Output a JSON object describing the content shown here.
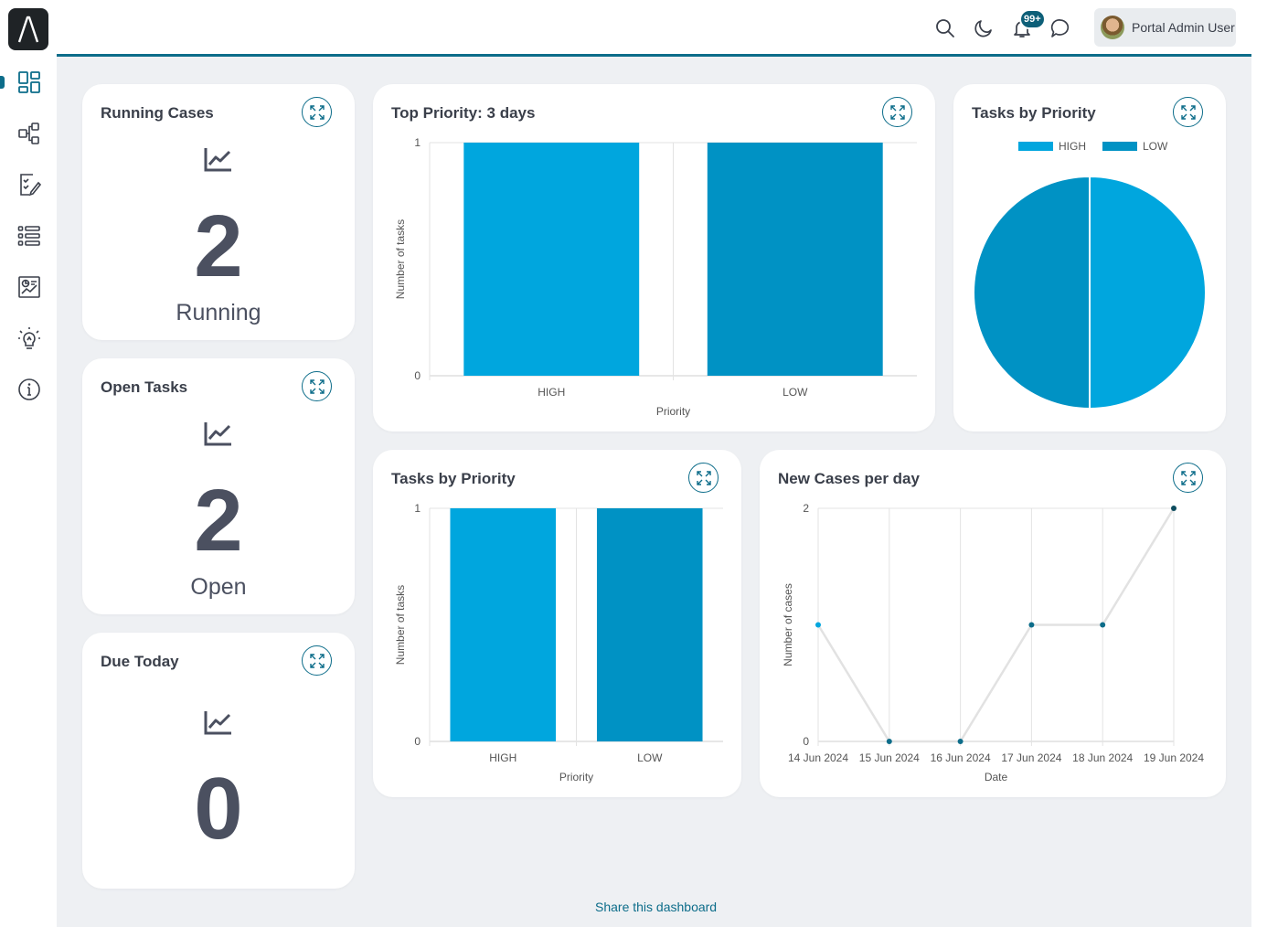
{
  "header": {
    "notifications_badge": "99+",
    "user_name": "Portal Admin User"
  },
  "sidebar": {
    "items": [
      {
        "icon": "dashboard-icon",
        "active": true
      },
      {
        "icon": "process-icon"
      },
      {
        "icon": "task-list-icon"
      },
      {
        "icon": "case-list-icon"
      },
      {
        "icon": "statistics-icon"
      },
      {
        "icon": "idea-icon"
      },
      {
        "icon": "info-icon"
      }
    ]
  },
  "colors": {
    "accent": "#0d6d8a",
    "high": "#00a6de",
    "low": "#0092c4",
    "line_point_dark": "#0d4c5e"
  },
  "widgets": {
    "running_cases": {
      "title": "Running Cases",
      "value": "2",
      "label": "Running"
    },
    "open_tasks": {
      "title": "Open Tasks",
      "value": "2",
      "label": "Open"
    },
    "due_today": {
      "title": "Due Today",
      "value": "0",
      "label": ""
    },
    "top_priority": {
      "title": "Top Priority: 3 days"
    },
    "tasks_by_priority_pie": {
      "title": "Tasks by Priority"
    },
    "tasks_by_priority_bar": {
      "title": "Tasks by Priority"
    },
    "new_cases_per_day": {
      "title": "New Cases per day"
    }
  },
  "share_link": "Share this dashboard",
  "chart_data": [
    {
      "id": "top_priority",
      "type": "bar",
      "categories": [
        "HIGH",
        "LOW"
      ],
      "values": [
        1,
        1
      ],
      "xlabel": "Priority",
      "ylabel": "Number of tasks",
      "ylim": [
        0,
        1
      ],
      "yticks": [
        "0",
        "1"
      ]
    },
    {
      "id": "tasks_by_priority_pie",
      "type": "pie",
      "labels": [
        "HIGH",
        "LOW"
      ],
      "values": [
        1,
        1
      ],
      "legend": "top"
    },
    {
      "id": "tasks_by_priority_bar",
      "type": "bar",
      "categories": [
        "HIGH",
        "LOW"
      ],
      "values": [
        1,
        1
      ],
      "xlabel": "Priority",
      "ylabel": "Number of tasks",
      "ylim": [
        0,
        1
      ],
      "yticks": [
        "0",
        "1"
      ]
    },
    {
      "id": "new_cases_per_day",
      "type": "line",
      "x": [
        "14 Jun 2024",
        "15 Jun 2024",
        "16 Jun 2024",
        "17 Jun 2024",
        "18 Jun 2024",
        "19 Jun 2024"
      ],
      "values": [
        1,
        0,
        0,
        1,
        1,
        2
      ],
      "xlabel": "Date",
      "ylabel": "Number of cases",
      "ylim": [
        0,
        2
      ],
      "yticks": [
        "0",
        "2"
      ],
      "grid": true
    }
  ]
}
